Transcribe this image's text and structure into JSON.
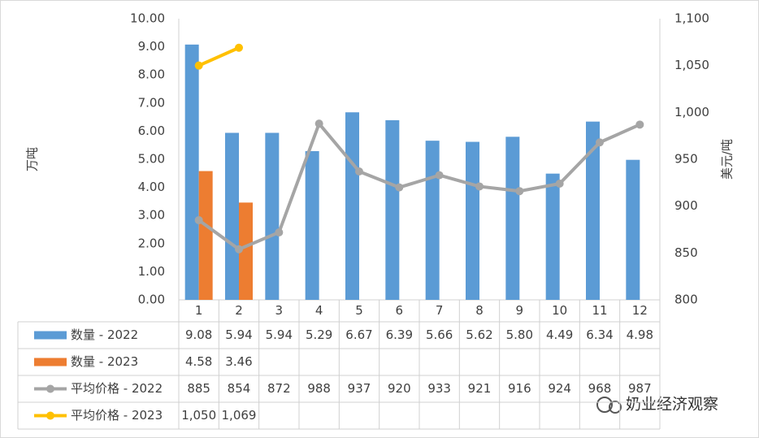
{
  "chart_data": {
    "type": "bar-line-table",
    "categories": [
      "1",
      "2",
      "3",
      "4",
      "5",
      "6",
      "7",
      "8",
      "9",
      "10",
      "11",
      "12"
    ],
    "y_label": "万吨",
    "y2_label": "美元/吨",
    "ylim": [
      0,
      10
    ],
    "yticks": [
      {
        "value": 0,
        "label": "0.00"
      },
      {
        "value": 1,
        "label": "1.00"
      },
      {
        "value": 2,
        "label": "2.00"
      },
      {
        "value": 3,
        "label": "3.00"
      },
      {
        "value": 4,
        "label": "4.00"
      },
      {
        "value": 5,
        "label": "5.00"
      },
      {
        "value": 6,
        "label": "6.00"
      },
      {
        "value": 7,
        "label": "7.00"
      },
      {
        "value": 8,
        "label": "8.00"
      },
      {
        "value": 9,
        "label": "9.00"
      },
      {
        "value": 10,
        "label": "10.00"
      }
    ],
    "y2lim": [
      800,
      1100
    ],
    "y2ticks": [
      800,
      850,
      900,
      950,
      {
        "value": 1000,
        "label": "1,000"
      },
      {
        "value": 1050,
        "label": "1,050"
      },
      {
        "value": 1100,
        "label": "1,100"
      }
    ],
    "series": [
      {
        "name": "数量 - 2022",
        "type": "bar",
        "color": "#5b9bd5",
        "values": [
          9.08,
          5.94,
          5.94,
          5.29,
          6.67,
          6.39,
          5.66,
          5.62,
          5.8,
          4.49,
          6.34,
          4.98
        ],
        "value_labels": [
          "9.08",
          "5.94",
          "5.94",
          "5.29",
          "6.67",
          "6.39",
          "5.66",
          "5.62",
          "5.80",
          "4.49",
          "6.34",
          "4.98"
        ]
      },
      {
        "name": "数量 - 2023",
        "type": "bar",
        "color": "#ed7d31",
        "values": [
          4.58,
          3.46,
          null,
          null,
          null,
          null,
          null,
          null,
          null,
          null,
          null,
          null
        ]
      },
      {
        "name": "平均价格 - 2022",
        "type": "line",
        "axis": "y2",
        "color": "#a5a5a5",
        "values": [
          885,
          854,
          872,
          988,
          937,
          920,
          933,
          921,
          916,
          924,
          968,
          987
        ]
      },
      {
        "name": "平均价格 - 2023",
        "type": "line",
        "axis": "y2",
        "color": "#ffc000",
        "values": [
          1050,
          1069,
          null,
          null,
          null,
          null,
          null,
          null,
          null,
          null,
          null,
          null
        ],
        "value_labels": [
          "1,050",
          "1,069",
          null,
          null,
          null,
          null,
          null,
          null,
          null,
          null,
          null,
          null
        ]
      }
    ],
    "watermark": "奶业经济观察"
  }
}
